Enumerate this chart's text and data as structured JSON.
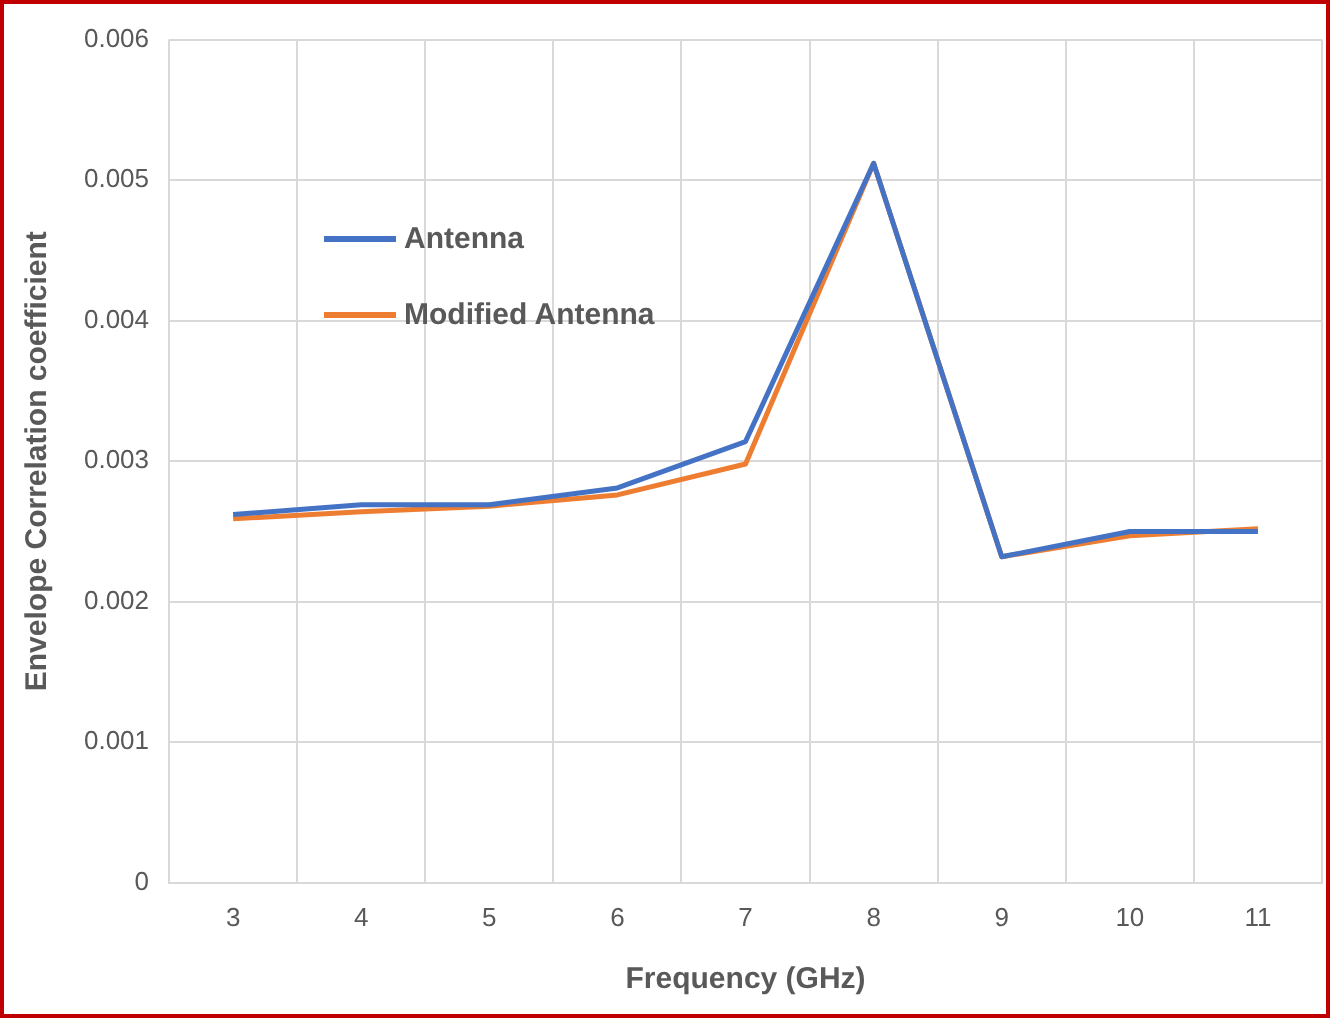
{
  "chart_data": {
    "type": "line",
    "xlabel": "Frequency (GHz)",
    "ylabel": "Envelope Correlation coefficient",
    "categories": [
      "3",
      "4",
      "5",
      "6",
      "7",
      "8",
      "9",
      "10",
      "11"
    ],
    "series": [
      {
        "name": "Antenna",
        "color": "#4472c4",
        "values": [
          0.00262,
          0.00269,
          0.00269,
          0.00281,
          0.00314,
          0.00512,
          0.00232,
          0.0025,
          0.0025
        ]
      },
      {
        "name": "Modified Antenna",
        "color": "#ed7d31",
        "values": [
          0.00259,
          0.00264,
          0.00268,
          0.00276,
          0.00298,
          0.00512,
          0.00232,
          0.00247,
          0.00252
        ]
      }
    ],
    "ylim": [
      0,
      0.006
    ],
    "yticks": [
      0,
      0.001,
      0.002,
      0.003,
      0.004,
      0.005,
      0.006
    ],
    "grid": true,
    "legend": "top left",
    "marker": "none",
    "line_style": "solid"
  }
}
